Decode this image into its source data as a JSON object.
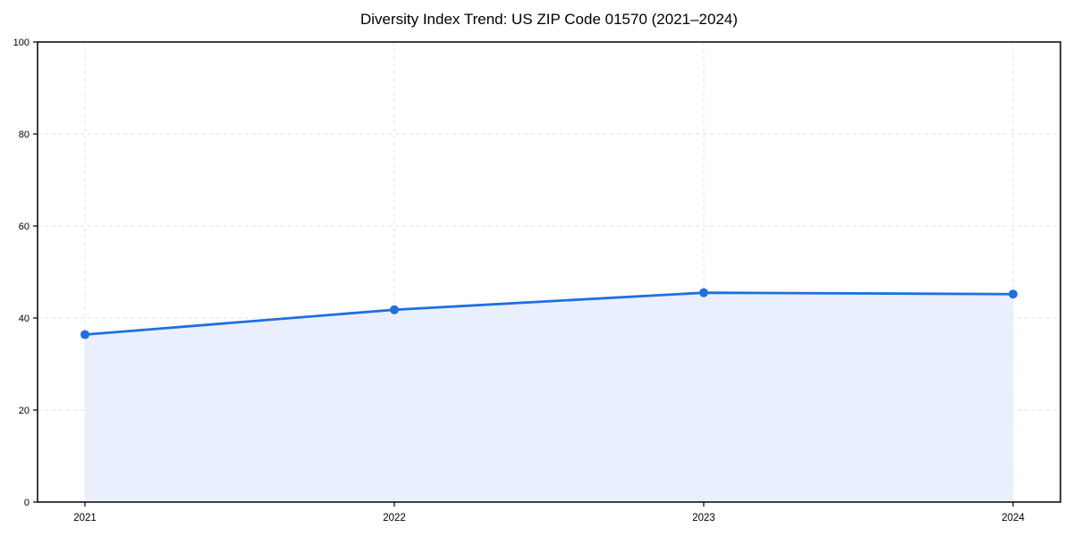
{
  "chart_data": {
    "type": "line",
    "title": "Diversity Index Trend: US ZIP Code 01570 (2021–2024)",
    "categories": [
      "2021",
      "2022",
      "2023",
      "2024"
    ],
    "values": [
      36.4,
      41.8,
      45.5,
      45.2
    ],
    "xlabel": "",
    "ylabel": "",
    "ylim": [
      0,
      100
    ],
    "y_ticks": [
      0,
      20,
      40,
      60,
      80,
      100
    ],
    "grid": "dashed-both-directions",
    "legend": "none",
    "marker": "circle",
    "area_fill": true,
    "colors": {
      "line": "#1f6fe0",
      "area": "#e9effc",
      "grid": "#e2e2e2",
      "axis": "#000000",
      "text": "#000000",
      "background": "#ffffff"
    }
  }
}
